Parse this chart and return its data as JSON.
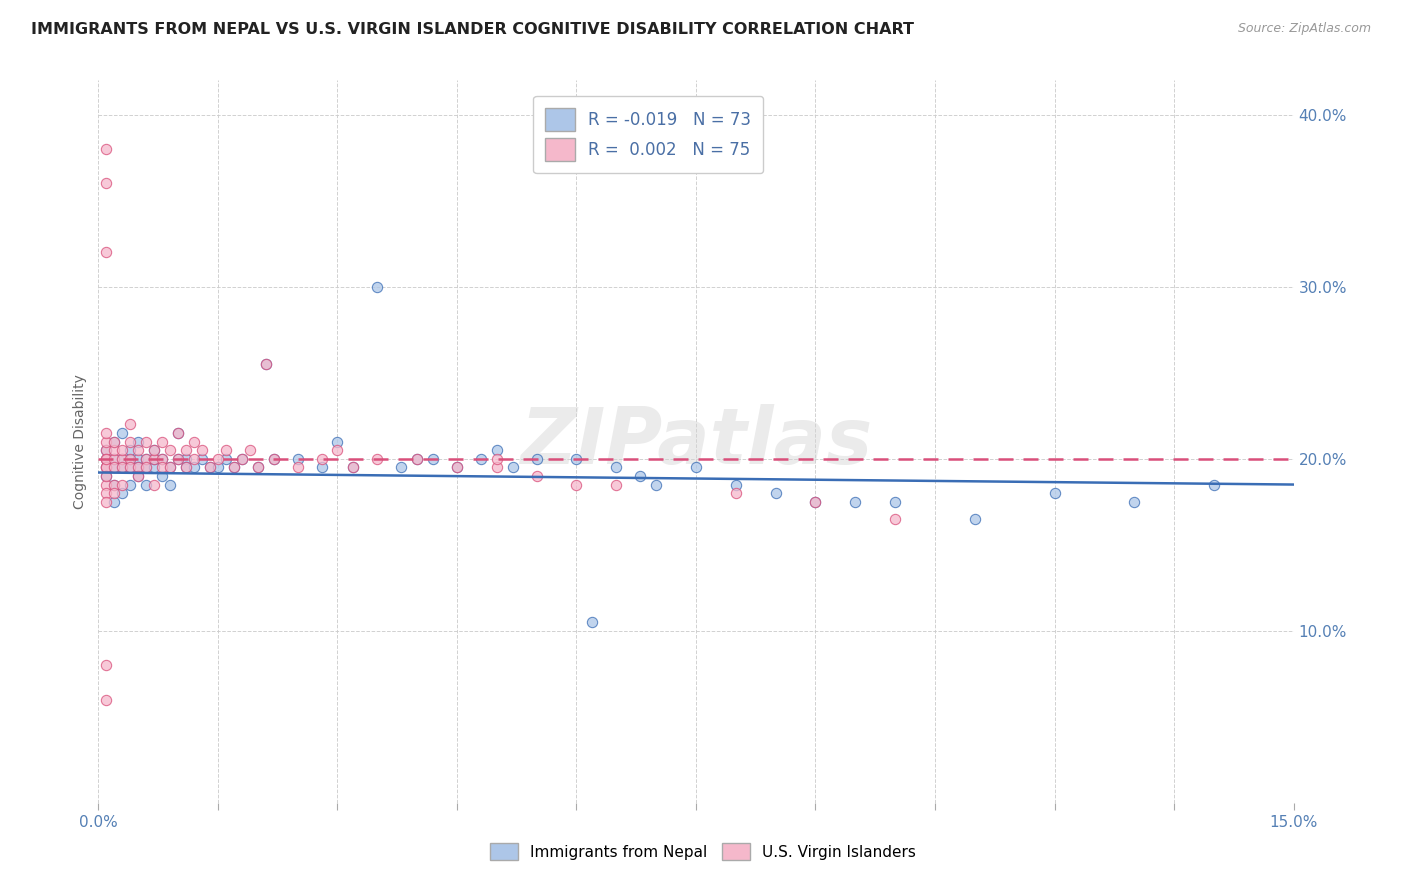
{
  "title": "IMMIGRANTS FROM NEPAL VS U.S. VIRGIN ISLANDER COGNITIVE DISABILITY CORRELATION CHART",
  "source": "Source: ZipAtlas.com",
  "ylabel": "Cognitive Disability",
  "legend_label1": "Immigrants from Nepal",
  "legend_label2": "U.S. Virgin Islanders",
  "R1": -0.019,
  "N1": 73,
  "R2": 0.002,
  "N2": 75,
  "color1": "#adc6e8",
  "color2": "#f5b8cb",
  "line_color1": "#3a6db5",
  "line_color2": "#d94f7a",
  "watermark": "ZIPatlas",
  "xlim": [
    0.0,
    0.15
  ],
  "ylim": [
    0.0,
    0.42
  ],
  "yticks": [
    0.1,
    0.2,
    0.3,
    0.4
  ],
  "ytick_labels": [
    "10.0%",
    "20.0%",
    "30.0%",
    "40.0%"
  ],
  "background_color": "#ffffff",
  "blue_trend_x0": 0.0,
  "blue_trend_y0": 0.192,
  "blue_trend_x1": 0.15,
  "blue_trend_y1": 0.185,
  "pink_trend_x0": 0.0,
  "pink_trend_y0": 0.2,
  "pink_trend_x1": 0.15,
  "pink_trend_y1": 0.2,
  "scatter1_x": [
    0.001,
    0.001,
    0.001,
    0.001,
    0.002,
    0.002,
    0.002,
    0.002,
    0.002,
    0.003,
    0.003,
    0.003,
    0.003,
    0.004,
    0.004,
    0.004,
    0.004,
    0.005,
    0.005,
    0.005,
    0.005,
    0.006,
    0.006,
    0.006,
    0.007,
    0.007,
    0.007,
    0.008,
    0.008,
    0.009,
    0.009,
    0.01,
    0.01,
    0.011,
    0.011,
    0.012,
    0.013,
    0.014,
    0.015,
    0.016,
    0.017,
    0.018,
    0.02,
    0.021,
    0.022,
    0.025,
    0.028,
    0.03,
    0.032,
    0.035,
    0.038,
    0.04,
    0.042,
    0.045,
    0.048,
    0.05,
    0.052,
    0.055,
    0.06,
    0.062,
    0.065,
    0.068,
    0.07,
    0.075,
    0.08,
    0.085,
    0.09,
    0.095,
    0.1,
    0.11,
    0.12,
    0.13,
    0.14
  ],
  "scatter1_y": [
    0.195,
    0.2,
    0.205,
    0.19,
    0.195,
    0.2,
    0.185,
    0.21,
    0.175,
    0.2,
    0.195,
    0.18,
    0.215,
    0.195,
    0.2,
    0.185,
    0.205,
    0.19,
    0.2,
    0.195,
    0.21,
    0.195,
    0.2,
    0.185,
    0.195,
    0.2,
    0.205,
    0.19,
    0.2,
    0.195,
    0.185,
    0.2,
    0.215,
    0.2,
    0.195,
    0.195,
    0.2,
    0.195,
    0.195,
    0.2,
    0.195,
    0.2,
    0.195,
    0.255,
    0.2,
    0.2,
    0.195,
    0.21,
    0.195,
    0.3,
    0.195,
    0.2,
    0.2,
    0.195,
    0.2,
    0.205,
    0.195,
    0.2,
    0.2,
    0.105,
    0.195,
    0.19,
    0.185,
    0.195,
    0.185,
    0.18,
    0.175,
    0.175,
    0.175,
    0.165,
    0.18,
    0.175,
    0.185
  ],
  "scatter2_x": [
    0.001,
    0.001,
    0.001,
    0.001,
    0.001,
    0.001,
    0.001,
    0.001,
    0.001,
    0.001,
    0.001,
    0.002,
    0.002,
    0.002,
    0.002,
    0.002,
    0.002,
    0.003,
    0.003,
    0.003,
    0.003,
    0.004,
    0.004,
    0.004,
    0.004,
    0.005,
    0.005,
    0.005,
    0.006,
    0.006,
    0.006,
    0.007,
    0.007,
    0.007,
    0.008,
    0.008,
    0.008,
    0.009,
    0.009,
    0.01,
    0.01,
    0.011,
    0.011,
    0.012,
    0.012,
    0.013,
    0.014,
    0.015,
    0.016,
    0.017,
    0.018,
    0.019,
    0.02,
    0.021,
    0.022,
    0.025,
    0.028,
    0.03,
    0.032,
    0.035,
    0.04,
    0.045,
    0.05,
    0.05,
    0.055,
    0.06,
    0.065,
    0.08,
    0.09,
    0.1,
    0.001,
    0.001,
    0.001,
    0.001,
    0.001
  ],
  "scatter2_y": [
    0.205,
    0.195,
    0.2,
    0.185,
    0.21,
    0.195,
    0.18,
    0.2,
    0.215,
    0.19,
    0.175,
    0.2,
    0.205,
    0.195,
    0.185,
    0.21,
    0.18,
    0.2,
    0.195,
    0.205,
    0.185,
    0.2,
    0.21,
    0.195,
    0.22,
    0.195,
    0.205,
    0.19,
    0.2,
    0.21,
    0.195,
    0.2,
    0.205,
    0.185,
    0.2,
    0.21,
    0.195,
    0.205,
    0.195,
    0.2,
    0.215,
    0.205,
    0.195,
    0.2,
    0.21,
    0.205,
    0.195,
    0.2,
    0.205,
    0.195,
    0.2,
    0.205,
    0.195,
    0.255,
    0.2,
    0.195,
    0.2,
    0.205,
    0.195,
    0.2,
    0.2,
    0.195,
    0.195,
    0.2,
    0.19,
    0.185,
    0.185,
    0.18,
    0.175,
    0.165,
    0.38,
    0.36,
    0.32,
    0.08,
    0.06
  ]
}
